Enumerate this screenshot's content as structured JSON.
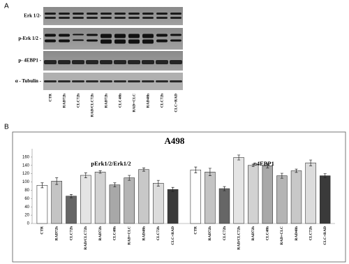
{
  "panel_a": {
    "label": "A",
    "rows": [
      "Erk 1/2-",
      "p-Erk 1/2 -",
      "p- 4EBP1 -",
      "α - Tubulin -"
    ],
    "lanes": [
      "CTR",
      "RAD72h",
      "CLC72h",
      "RAD/CLC72h",
      "RAD72h",
      "CLC48h",
      "RAD+CLC",
      "RAD48h",
      "CLC72h",
      "CLC+RAD"
    ]
  },
  "panel_b": {
    "label": "B"
  },
  "chart_data": {
    "type": "bar",
    "title": "A498",
    "ylim": [
      0,
      180
    ],
    "yticks": [
      0,
      20,
      40,
      60,
      80,
      100,
      120,
      140,
      160
    ],
    "colors": [
      "#ffffff",
      "#c4c4c4",
      "#666666",
      "#e4e4e4",
      "#d2d2d2",
      "#a8a8a8",
      "#b4b4b4",
      "#c8c8c8",
      "#dcdcdc",
      "#3a3a3a"
    ],
    "groups": [
      {
        "name": "pErk1/2/Erk1/2",
        "categories": [
          "CTR",
          "RAD72h",
          "CLC72h",
          "RAD/CLC72h",
          "RAD72h",
          "CLC48h",
          "RAD+CLC",
          "RAD48h",
          "CLC72h",
          "CLC+RAD"
        ],
        "values": [
          92,
          102,
          66,
          116,
          124,
          93,
          110,
          130,
          97,
          82
        ],
        "errors": [
          6,
          8,
          4,
          6,
          3,
          5,
          6,
          4,
          7,
          5
        ]
      },
      {
        "name": "p4EBP1",
        "categories": [
          "CTR",
          "RAD72h",
          "CLC72h",
          "RAD/CLC72h",
          "RAD72h",
          "CLC48h",
          "RAD+CLC",
          "RAD48h",
          "CLC72h",
          "CLC+RAD"
        ],
        "values": [
          129,
          124,
          84,
          159,
          140,
          139,
          115,
          127,
          146,
          115
        ],
        "errors": [
          7,
          9,
          5,
          6,
          3,
          5,
          6,
          4,
          7,
          5
        ]
      }
    ]
  }
}
